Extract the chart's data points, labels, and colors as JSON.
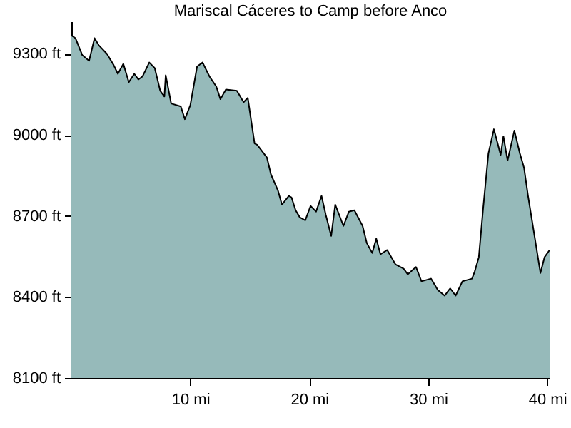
{
  "chart_data": {
    "type": "area",
    "title": "Mariscal Cáceres to Camp before Anco",
    "x": [
      0,
      0.34,
      0.92,
      1.49,
      1.95,
      2.3,
      2.99,
      3.56,
      3.91,
      4.37,
      4.83,
      5.29,
      5.63,
      5.98,
      6.55,
      7.01,
      7.47,
      7.82,
      7.93,
      8.39,
      9.2,
      9.54,
      10.0,
      10.57,
      11.03,
      11.61,
      12.18,
      12.53,
      12.99,
      13.91,
      14.48,
      14.83,
      15.4,
      15.63,
      16.44,
      16.78,
      17.36,
      17.7,
      18.28,
      18.51,
      18.85,
      19.2,
      19.66,
      20.11,
      20.57,
      21.03,
      21.38,
      21.84,
      22.18,
      22.87,
      23.33,
      23.79,
      24.48,
      24.83,
      25.29,
      25.63,
      25.98,
      26.55,
      27.24,
      27.93,
      28.28,
      28.97,
      29.43,
      30.23,
      30.8,
      31.38,
      31.84,
      32.3,
      32.87,
      33.68,
      33.91,
      34.25,
      34.6,
      35.06,
      35.52,
      36.09,
      36.32,
      36.67,
      37.24,
      37.7,
      38.05,
      38.39,
      38.97,
      39.43,
      39.77,
      40.2
    ],
    "series": [
      {
        "color": "#96baba",
        "values": [
          9368,
          9358,
          9295,
          9274,
          9358,
          9332,
          9300,
          9258,
          9226,
          9263,
          9195,
          9226,
          9205,
          9216,
          9268,
          9247,
          9163,
          9142,
          9221,
          9116,
          9105,
          9058,
          9110,
          9253,
          9268,
          9216,
          9179,
          9132,
          9168,
          9163,
          9121,
          9137,
          8968,
          8963,
          8916,
          8853,
          8795,
          8742,
          8774,
          8768,
          8721,
          8695,
          8684,
          8737,
          8716,
          8774,
          8705,
          8626,
          8742,
          8663,
          8716,
          8721,
          8663,
          8600,
          8563,
          8616,
          8558,
          8574,
          8521,
          8505,
          8484,
          8511,
          8458,
          8468,
          8426,
          8405,
          8432,
          8405,
          8458,
          8468,
          8495,
          8547,
          8721,
          8932,
          9021,
          8926,
          8995,
          8905,
          9016,
          8932,
          8879,
          8774,
          8616,
          8489,
          8547,
          8574
        ]
      }
    ],
    "xlim": [
      0,
      40.2
    ],
    "ylim": [
      8100,
      9420
    ],
    "xticks": [
      {
        "value": 10,
        "label": "10 mi"
      },
      {
        "value": 20,
        "label": "20 mi"
      },
      {
        "value": 30,
        "label": "30 mi"
      },
      {
        "value": 40,
        "label": "40 mi"
      }
    ],
    "yticks": [
      {
        "value": 8100,
        "label": "8100 ft"
      },
      {
        "value": 8400,
        "label": "8400 ft"
      },
      {
        "value": 8700,
        "label": "8700 ft"
      },
      {
        "value": 9000,
        "label": "9000 ft"
      },
      {
        "value": 9300,
        "label": "9300 ft"
      }
    ],
    "grid": false
  }
}
